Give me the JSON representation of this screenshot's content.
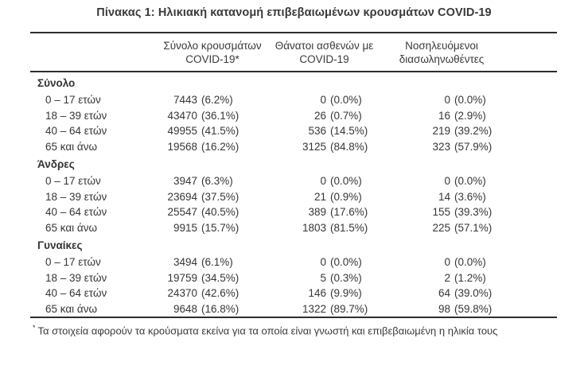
{
  "title": "Πίνακας 1: Ηλικιακή κατανομή επιβεβαιωμένων κρουσμάτων COVID-19",
  "colors": {
    "background": "#ffffff",
    "text": "#363636",
    "rule": "#2d2d2d"
  },
  "table": {
    "columns": [
      {
        "line1": "Σύνολο κρουσμάτων",
        "line2": "COVID-19*"
      },
      {
        "line1": "Θάνατοι ασθενών με",
        "line2": "COVID-19"
      },
      {
        "line1": "Νοσηλευόμενοι",
        "line2": "διασωληνωθέντες"
      }
    ],
    "sections": [
      {
        "label": "Σύνολο",
        "rows": [
          {
            "age": "0 – 17 ετών",
            "cases": "7443",
            "cases_pct": "(6.2%)",
            "deaths": "0",
            "deaths_pct": "(0.0%)",
            "intubated": "0",
            "intubated_pct": "(0.0%)"
          },
          {
            "age": "18 – 39 ετών",
            "cases": "43470",
            "cases_pct": "(36.1%)",
            "deaths": "26",
            "deaths_pct": "(0.7%)",
            "intubated": "16",
            "intubated_pct": "(2.9%)"
          },
          {
            "age": "40 – 64 ετών",
            "cases": "49955",
            "cases_pct": "(41.5%)",
            "deaths": "536",
            "deaths_pct": "(14.5%)",
            "intubated": "219",
            "intubated_pct": "(39.2%)"
          },
          {
            "age": "65 και άνω",
            "cases": "19568",
            "cases_pct": "(16.2%)",
            "deaths": "3125",
            "deaths_pct": "(84.8%)",
            "intubated": "323",
            "intubated_pct": "(57.9%)"
          }
        ]
      },
      {
        "label": "Άνδρες",
        "rows": [
          {
            "age": "0 – 17 ετών",
            "cases": "3947",
            "cases_pct": "(6.3%)",
            "deaths": "0",
            "deaths_pct": "(0.0%)",
            "intubated": "0",
            "intubated_pct": "(0.0%)"
          },
          {
            "age": "18 – 39 ετών",
            "cases": "23694",
            "cases_pct": "(37.5%)",
            "deaths": "21",
            "deaths_pct": "(0.9%)",
            "intubated": "14",
            "intubated_pct": "(3.6%)"
          },
          {
            "age": "40 – 64 ετών",
            "cases": "25547",
            "cases_pct": "(40.5%)",
            "deaths": "389",
            "deaths_pct": "(17.6%)",
            "intubated": "155",
            "intubated_pct": "(39.3%)"
          },
          {
            "age": "65 και άνω",
            "cases": "9915",
            "cases_pct": "(15.7%)",
            "deaths": "1803",
            "deaths_pct": "(81.5%)",
            "intubated": "225",
            "intubated_pct": "(57.1%)"
          }
        ]
      },
      {
        "label": "Γυναίκες",
        "rows": [
          {
            "age": "0 – 17 ετών",
            "cases": "3494",
            "cases_pct": "(6.1%)",
            "deaths": "0",
            "deaths_pct": "(0.0%)",
            "intubated": "0",
            "intubated_pct": "(0.0%)"
          },
          {
            "age": "18 – 39 ετών",
            "cases": "19759",
            "cases_pct": "(34.5%)",
            "deaths": "5",
            "deaths_pct": "(0.3%)",
            "intubated": "2",
            "intubated_pct": "(1.2%)"
          },
          {
            "age": "40 – 64 ετών",
            "cases": "24370",
            "cases_pct": "(42.6%)",
            "deaths": "146",
            "deaths_pct": "(9.9%)",
            "intubated": "64",
            "intubated_pct": "(39.0%)"
          },
          {
            "age": "65 και άνω",
            "cases": "9648",
            "cases_pct": "(16.8%)",
            "deaths": "1322",
            "deaths_pct": "(89.7%)",
            "intubated": "98",
            "intubated_pct": "(59.8%)"
          }
        ]
      }
    ]
  },
  "footnote": {
    "marker": "*",
    "text": "Τα στοιχεία αφορούν τα κρούσματα εκείνα για τα οποία είναι γνωστή και επιβεβαιωμένη η ηλικία τους"
  }
}
